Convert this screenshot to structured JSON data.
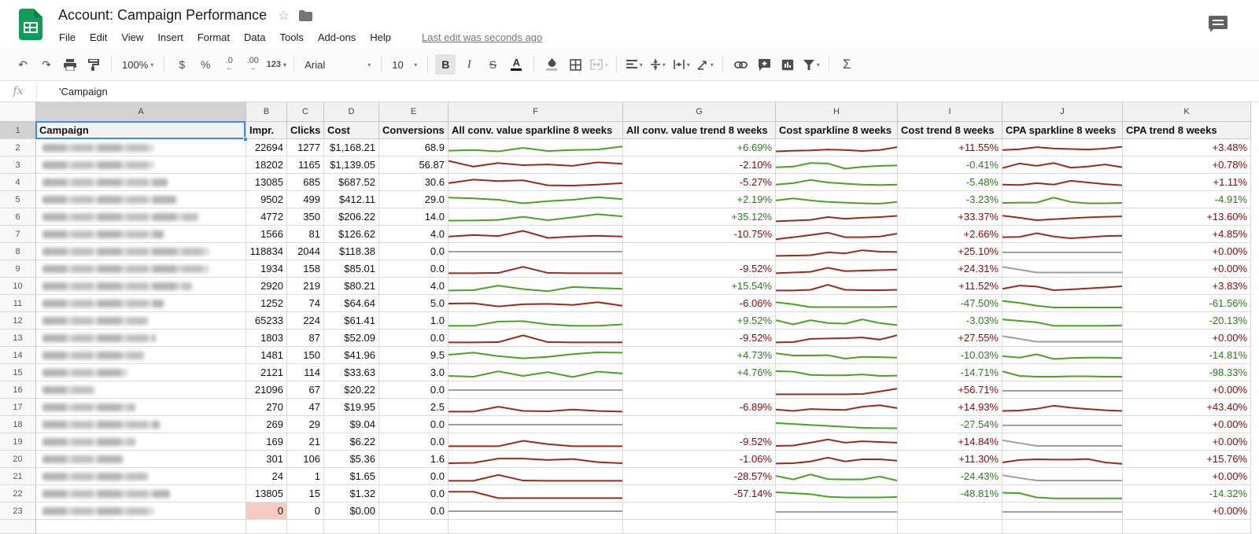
{
  "app": {
    "title": "Account: Campaign Performance",
    "menu": [
      "File",
      "Edit",
      "View",
      "Insert",
      "Format",
      "Data",
      "Tools",
      "Add-ons",
      "Help"
    ],
    "last_edit": "Last edit was seconds ago"
  },
  "toolbar": {
    "zoom": "100%",
    "currency": "$",
    "percent": "%",
    "dec_decrease": ".0",
    "dec_increase": ".00",
    "more_formats": "123",
    "font": "Arial",
    "font_size": "10",
    "bold": "B",
    "italic": "I",
    "strikethrough": "S",
    "text_color": "A",
    "sum": "Σ"
  },
  "formula_bar": {
    "fx": "fx",
    "value": "'Campaign"
  },
  "colors": {
    "selection_blue": "#4285f4",
    "trend_green": "#287d19",
    "trend_red": "#990000",
    "spark_green": "#48a321",
    "spark_red": "#a0281a",
    "spark_gray": "#9e9e9e",
    "row23_impr_highlight": "#f6cbc1",
    "logo_green": "#0f9d58"
  },
  "sheet": {
    "col_letters": [
      "A",
      "B",
      "C",
      "D",
      "E",
      "F",
      "G",
      "H",
      "I",
      "J",
      "K"
    ],
    "header_row": [
      "Campaign",
      "Impr.",
      "Clicks",
      "Cost",
      "Conversions",
      "All conv. value sparkline 8 weeks",
      "All conv. value trend 8 weeks",
      "Cost sparkline 8 weeks",
      "Cost trend 8 weeks",
      "CPA sparkline 8 weeks",
      "CPA trend 8 weeks"
    ],
    "rows": [
      {
        "nw": 0.55,
        "b": "22694",
        "c": "1277",
        "d": "$1,168.21",
        "e": "68.9",
        "f": {
          "c": "green",
          "p": [
            3,
            3.5,
            2.5,
            5,
            2.8,
            3.5,
            3.8,
            6
          ]
        },
        "g": "+6.69%",
        "h": {
          "c": "red",
          "p": [
            2.5,
            3,
            3.2,
            3.8,
            3.5,
            2.8,
            3.5,
            5.5
          ]
        },
        "i": "+11.55%",
        "j": {
          "c": "red",
          "p": [
            3.5,
            4,
            5.5,
            4.5,
            4.2,
            3.8,
            4.5,
            5.8
          ]
        },
        "k": "+3.48%"
      },
      {
        "nw": 0.55,
        "b": "18202",
        "c": "1165",
        "d": "$1,139.05",
        "e": "56.87",
        "f": {
          "c": "red",
          "p": [
            8,
            4,
            6.5,
            5,
            5.5,
            4.5,
            7,
            6
          ]
        },
        "g": "-2.10%",
        "h": {
          "c": "green",
          "p": [
            3.5,
            4,
            6.5,
            6.2,
            2.5,
            3.8,
            4.5,
            4.8
          ]
        },
        "i": "-0.41%",
        "j": {
          "c": "red",
          "p": [
            3,
            6.2,
            4.5,
            6.5,
            3.2,
            4,
            5.5,
            3.5
          ]
        },
        "k": "+0.78%"
      },
      {
        "nw": 0.62,
        "b": "13085",
        "c": "685",
        "d": "$687.52",
        "e": "30.6",
        "f": {
          "c": "red",
          "p": [
            4.5,
            7,
            6,
            6.5,
            3,
            2.8,
            3.5,
            4.5
          ]
        },
        "g": "-5.27%",
        "h": {
          "c": "green",
          "p": [
            3.5,
            4.5,
            6.8,
            5,
            4.2,
            3.5,
            3.2,
            3.5
          ]
        },
        "i": "-5.48%",
        "j": {
          "c": "red",
          "p": [
            3.5,
            3.2,
            4.5,
            3.5,
            6.2,
            5,
            3.8,
            3
          ]
        },
        "k": "+1.11%"
      },
      {
        "nw": 0.66,
        "b": "9502",
        "c": "499",
        "d": "$412.11",
        "e": "29.0",
        "f": {
          "c": "green",
          "p": [
            6.5,
            6,
            5,
            2.5,
            4,
            5,
            6.8,
            5.5
          ]
        },
        "g": "+2.19%",
        "h": {
          "c": "green",
          "p": [
            4.5,
            6,
            4.5,
            3.5,
            3,
            2.5,
            2.2,
            3.5
          ]
        },
        "i": "-3.23%",
        "j": {
          "c": "green",
          "p": [
            2.8,
            3,
            3,
            6.5,
            3.5,
            2.5,
            2.5,
            2.8
          ]
        },
        "k": "-4.91%"
      },
      {
        "nw": 0.77,
        "b": "4772",
        "c": "350",
        "d": "$206.22",
        "e": "14.0",
        "f": {
          "c": "green",
          "p": [
            2.5,
            2.6,
            3,
            5.2,
            2.8,
            4.8,
            7,
            5.5
          ]
        },
        "g": "+35.12%",
        "h": {
          "c": "red",
          "p": [
            2,
            2.5,
            3,
            5,
            3.8,
            4.5,
            5,
            5.8
          ]
        },
        "i": "+33.37%",
        "j": {
          "c": "red",
          "p": [
            6,
            4.5,
            2.8,
            3.5,
            4.2,
            4.8,
            5.2,
            5.5
          ]
        },
        "k": "+13.60%"
      },
      {
        "nw": 0.6,
        "b": "1566",
        "c": "81",
        "d": "$126.62",
        "e": "4.0",
        "f": {
          "c": "red",
          "p": [
            3.5,
            4.5,
            3.8,
            7.5,
            2.5,
            3.5,
            4,
            3.5
          ]
        },
        "g": "-10.75%",
        "h": {
          "c": "red",
          "p": [
            1.5,
            3,
            4.5,
            6.2,
            3,
            3,
            3.5,
            5.5
          ]
        },
        "i": "+2.66%",
        "j": {
          "c": "red",
          "p": [
            3,
            3.2,
            5.8,
            3.5,
            2.2,
            3,
            3.8,
            4
          ]
        },
        "k": "+4.85%"
      },
      {
        "nw": 0.82,
        "b": "118834",
        "c": "2044",
        "d": "$118.38",
        "e": "0.0",
        "f": {
          "c": "gray",
          "p": [
            5,
            5,
            5,
            5,
            5,
            5,
            5,
            5
          ]
        },
        "g": "",
        "h": {
          "c": "red",
          "p": [
            2,
            2.2,
            2.5,
            4.5,
            3.8,
            6,
            5,
            4.8
          ]
        },
        "i": "+25.10%",
        "j": {
          "c": "gray",
          "p": [
            4.5,
            4.5,
            4.5,
            4.5,
            4.5,
            4.5,
            4.5,
            4.5
          ]
        },
        "k": "+0.00%"
      },
      {
        "nw": 0.82,
        "b": "1934",
        "c": "158",
        "d": "$85.01",
        "e": "0.0",
        "f": {
          "c": "red",
          "p": [
            2,
            2,
            2.2,
            6.5,
            2.2,
            2,
            2,
            2
          ]
        },
        "g": "-9.52%",
        "h": {
          "c": "red",
          "p": [
            2,
            2.5,
            3,
            5.8,
            3.5,
            3.8,
            4.2,
            4.5
          ]
        },
        "i": "+24.31%",
        "j": {
          "c": "gray",
          "p": [
            6.5,
            4.5,
            2.5,
            2.5,
            2.5,
            2.5,
            2.5,
            2.5
          ]
        },
        "k": "+0.00%"
      },
      {
        "nw": 0.74,
        "b": "2920",
        "c": "219",
        "d": "$80.21",
        "e": "4.0",
        "f": {
          "c": "green",
          "p": [
            2,
            2.2,
            5.5,
            3,
            1.5,
            4.5,
            3.8,
            3.2
          ]
        },
        "g": "+15.54%",
        "h": {
          "c": "red",
          "p": [
            2,
            2,
            2.5,
            6,
            2.5,
            2.2,
            2.2,
            2.5
          ]
        },
        "i": "+11.52%",
        "j": {
          "c": "red",
          "p": [
            3.2,
            5.5,
            4.8,
            2.2,
            2.8,
            3.5,
            4.2,
            5
          ]
        },
        "k": "+3.83%"
      },
      {
        "nw": 0.6,
        "b": "1252",
        "c": "74",
        "d": "$64.64",
        "e": "5.0",
        "f": {
          "c": "red",
          "p": [
            5,
            5.2,
            3,
            4.5,
            4.8,
            4,
            6,
            3.5
          ]
        },
        "g": "-6.06%",
        "h": {
          "c": "green",
          "p": [
            6,
            4.5,
            2.5,
            2.5,
            2.5,
            2.5,
            2.5,
            2.8
          ]
        },
        "i": "-47.50%",
        "j": {
          "c": "green",
          "p": [
            6.8,
            5.5,
            3.5,
            2.2,
            2.2,
            2.2,
            2.2,
            2.2
          ]
        },
        "k": "-61.56%"
      },
      {
        "nw": 0.52,
        "b": "65233",
        "c": "224",
        "d": "$61.41",
        "e": "1.0",
        "f": {
          "c": "green",
          "p": [
            1.5,
            1.5,
            4.5,
            4.8,
            2.5,
            1.5,
            1.5,
            2.5
          ]
        },
        "g": "+9.52%",
        "h": {
          "c": "green",
          "p": [
            5.5,
            2.5,
            5.5,
            3.5,
            3,
            6,
            3.5,
            2
          ]
        },
        "i": "-3.03%",
        "j": {
          "c": "green",
          "p": [
            6,
            5,
            4,
            1.5,
            1.5,
            1.5,
            1.5,
            1.8
          ]
        },
        "k": "-20.13%"
      },
      {
        "nw": 0.56,
        "b": "1803",
        "c": "87",
        "d": "$52.09",
        "e": "0.0",
        "f": {
          "c": "red",
          "p": [
            2,
            2,
            2.2,
            7,
            2.2,
            2,
            2,
            2
          ]
        },
        "g": "-9.52%",
        "h": {
          "c": "red",
          "p": [
            2,
            2.2,
            4.5,
            4.8,
            5,
            5.5,
            4,
            7
          ]
        },
        "i": "+27.55%",
        "j": {
          "c": "gray",
          "p": [
            6.5,
            4.5,
            2.5,
            2.5,
            2.5,
            2.5,
            2.5,
            2.5
          ]
        },
        "k": "+0.00%"
      },
      {
        "nw": 0.5,
        "b": "1481",
        "c": "150",
        "d": "$41.96",
        "e": "9.5",
        "f": {
          "c": "green",
          "p": [
            5.5,
            7,
            4.5,
            3,
            4,
            6,
            7.2,
            7
          ]
        },
        "g": "+4.73%",
        "h": {
          "c": "green",
          "p": [
            6.5,
            5,
            5,
            5.2,
            2.8,
            4,
            3.8,
            3.5
          ]
        },
        "i": "-10.03%",
        "j": {
          "c": "green",
          "p": [
            4.5,
            3.5,
            5.8,
            2.5,
            3.2,
            3.5,
            3.5,
            3.2
          ]
        },
        "k": "-14.81%"
      },
      {
        "nw": 0.42,
        "b": "2121",
        "c": "114",
        "d": "$33.63",
        "e": "3.0",
        "f": {
          "c": "green",
          "p": [
            2.8,
            2.2,
            6,
            2.8,
            5.5,
            2,
            5.8,
            4.5
          ]
        },
        "g": "+4.76%",
        "h": {
          "c": "green",
          "p": [
            6.2,
            5.8,
            3.5,
            3.2,
            3.2,
            3.8,
            2.8,
            3
          ]
        },
        "i": "-14.71%",
        "j": {
          "c": "green",
          "p": [
            6,
            2.8,
            2.2,
            2.2,
            2.5,
            2.5,
            2.2,
            2.2
          ]
        },
        "k": "-98.33%"
      },
      {
        "nw": 0.26,
        "b": "21096",
        "c": "67",
        "d": "$20.22",
        "e": "0.0",
        "f": {
          "c": "gray",
          "p": [
            5,
            5,
            5,
            5,
            5,
            5,
            5,
            5
          ]
        },
        "g": "",
        "h": {
          "c": "red",
          "p": [
            2,
            2,
            2,
            2,
            2,
            2.2,
            4,
            6
          ]
        },
        "i": "+56.71%",
        "j": {
          "c": "gray",
          "p": [
            4.5,
            4.5,
            4.5,
            4.5,
            4.5,
            4.5,
            4.5,
            4.5
          ]
        },
        "k": "+0.00%"
      },
      {
        "nw": 0.46,
        "b": "270",
        "c": "47",
        "d": "$19.95",
        "e": "2.5",
        "f": {
          "c": "red",
          "p": [
            2,
            2,
            5.5,
            2.5,
            2.2,
            3.5,
            2.5,
            2
          ]
        },
        "g": "-6.89%",
        "h": {
          "c": "red",
          "p": [
            3.5,
            2.5,
            3.8,
            3.5,
            3.2,
            5.5,
            6.5,
            4.5
          ]
        },
        "i": "+14.93%",
        "j": {
          "c": "red",
          "p": [
            2.5,
            2.8,
            4,
            6.2,
            4.8,
            3.8,
            3,
            2.5
          ]
        },
        "k": "+43.40%"
      },
      {
        "nw": 0.58,
        "b": "269",
        "c": "29",
        "d": "$9.04",
        "e": "0.0",
        "f": {
          "c": "gray",
          "p": [
            5,
            5,
            5,
            5,
            5,
            5,
            5,
            5
          ]
        },
        "g": "",
        "h": {
          "c": "green",
          "p": [
            6.2,
            5.5,
            4.8,
            4.2,
            3.5,
            2.8,
            2.6,
            2.5
          ]
        },
        "i": "-27.54%",
        "j": {
          "c": "gray",
          "p": [
            4.5,
            4.5,
            4.5,
            4.5,
            4.5,
            4.5,
            4.5,
            4.5
          ]
        },
        "k": "+0.00%"
      },
      {
        "nw": 0.46,
        "b": "169",
        "c": "21",
        "d": "$6.22",
        "e": "0.0",
        "f": {
          "c": "red",
          "p": [
            2,
            2,
            2,
            5.8,
            3.5,
            2,
            2,
            2
          ]
        },
        "g": "-9.52%",
        "h": {
          "c": "red",
          "p": [
            2.2,
            2.5,
            4.5,
            6.8,
            4.5,
            5.5,
            5,
            4.5
          ]
        },
        "i": "+14.84%",
        "j": {
          "c": "gray",
          "p": [
            6.2,
            4.2,
            2.2,
            2.2,
            2.2,
            2.2,
            2.2,
            2.2
          ]
        },
        "k": "+0.00%"
      },
      {
        "nw": 0.4,
        "b": "301",
        "c": "106",
        "d": "$5.36",
        "e": "1.6",
        "f": {
          "c": "red",
          "p": [
            2.2,
            2.5,
            5.5,
            5.5,
            4.5,
            5.2,
            3,
            2.2
          ]
        },
        "g": "-1.06%",
        "h": {
          "c": "red",
          "p": [
            2,
            2.2,
            3.5,
            6.2,
            3.5,
            5,
            5,
            4
          ]
        },
        "i": "+11.30%",
        "j": {
          "c": "red",
          "p": [
            2.8,
            4.5,
            5,
            4.8,
            4.8,
            5.2,
            2.8,
            1.8
          ]
        },
        "k": "+15.76%"
      },
      {
        "nw": 0.52,
        "b": "24",
        "c": "1",
        "d": "$1.65",
        "e": "0.0",
        "f": {
          "c": "red",
          "p": [
            2,
            2,
            6.2,
            2.2,
            2,
            2,
            2,
            2
          ]
        },
        "g": "-28.57%",
        "h": {
          "c": "green",
          "p": [
            5.5,
            3,
            6.5,
            3.2,
            3,
            3,
            5,
            2.2
          ]
        },
        "i": "-24.43%",
        "j": {
          "c": "gray",
          "p": [
            6,
            4,
            2.2,
            2.2,
            2.2,
            2.2,
            2.2,
            2.2
          ]
        },
        "k": "+0.00%"
      },
      {
        "nw": 0.63,
        "b": "13805",
        "c": "15",
        "d": "$1.32",
        "e": "0.0",
        "f": {
          "c": "red",
          "p": [
            6.5,
            6.5,
            2,
            2,
            2,
            2,
            2,
            2
          ]
        },
        "g": "-57.14%",
        "h": {
          "c": "green",
          "p": [
            6.2,
            5.5,
            4.8,
            3,
            2.5,
            2.5,
            2.5,
            2.8
          ]
        },
        "i": "-48.81%",
        "j": {
          "c": "green",
          "p": [
            5.8,
            5.5,
            2.5,
            1.8,
            1.8,
            1.8,
            1.8,
            1.8
          ]
        },
        "k": "-14.32%"
      },
      {
        "nw": 0.55,
        "b": "0",
        "b_hl": true,
        "c": "0",
        "d": "$0.00",
        "e": "0.0",
        "f": {
          "c": "gray",
          "p": [
            5,
            5,
            5,
            5,
            5,
            5,
            5,
            5
          ]
        },
        "g": "",
        "h": {
          "c": "gray",
          "p": [
            4.5,
            4.5,
            4.5,
            4.5,
            4.5,
            4.5,
            4.5,
            4.5
          ]
        },
        "i": "",
        "j": {
          "c": "gray",
          "p": [
            4.5,
            4.5,
            4.5,
            4.5,
            4.5,
            4.5,
            4.5,
            4.5
          ]
        },
        "k": "+0.00%"
      }
    ]
  }
}
